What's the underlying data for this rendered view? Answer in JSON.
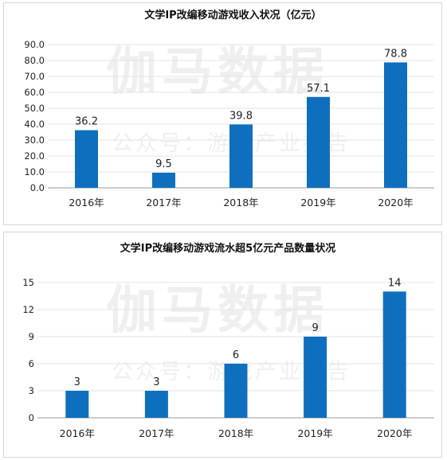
{
  "watermark": {
    "main": "伽马数据",
    "sub": "公众号：游戏产业报告"
  },
  "chart_data": [
    {
      "type": "bar",
      "title": "文学IP改编移动游戏收入状况（亿元）",
      "categories": [
        "2016年",
        "2017年",
        "2018年",
        "2019年",
        "2020年"
      ],
      "values": [
        36.2,
        9.5,
        39.8,
        57.1,
        78.8
      ],
      "value_labels": [
        "36.2",
        "9.5",
        "39.8",
        "57.1",
        "78.8"
      ],
      "ylim": [
        0,
        90
      ],
      "yticks": [
        0,
        10,
        20,
        30,
        40,
        50,
        60,
        70,
        80,
        90
      ],
      "ytick_labels": [
        "0.0",
        "10.0",
        "20.0",
        "30.0",
        "40.0",
        "50.0",
        "60.0",
        "70.0",
        "80.0",
        "90.0"
      ],
      "grid": true,
      "bar_color": "#0f6fbf"
    },
    {
      "type": "bar",
      "title": "文学IP改编移动游戏流水超5亿元产品数量状况",
      "categories": [
        "2016年",
        "2017年",
        "2018年",
        "2019年",
        "2020年"
      ],
      "values": [
        3,
        3,
        6,
        9,
        14
      ],
      "value_labels": [
        "3",
        "3",
        "6",
        "9",
        "14"
      ],
      "ylim": [
        0,
        15
      ],
      "yticks": [
        0,
        3,
        6,
        9,
        12,
        15
      ],
      "ytick_labels": [
        "0",
        "3",
        "6",
        "9",
        "12",
        "15"
      ],
      "grid": true,
      "bar_color": "#0f6fbf"
    }
  ]
}
